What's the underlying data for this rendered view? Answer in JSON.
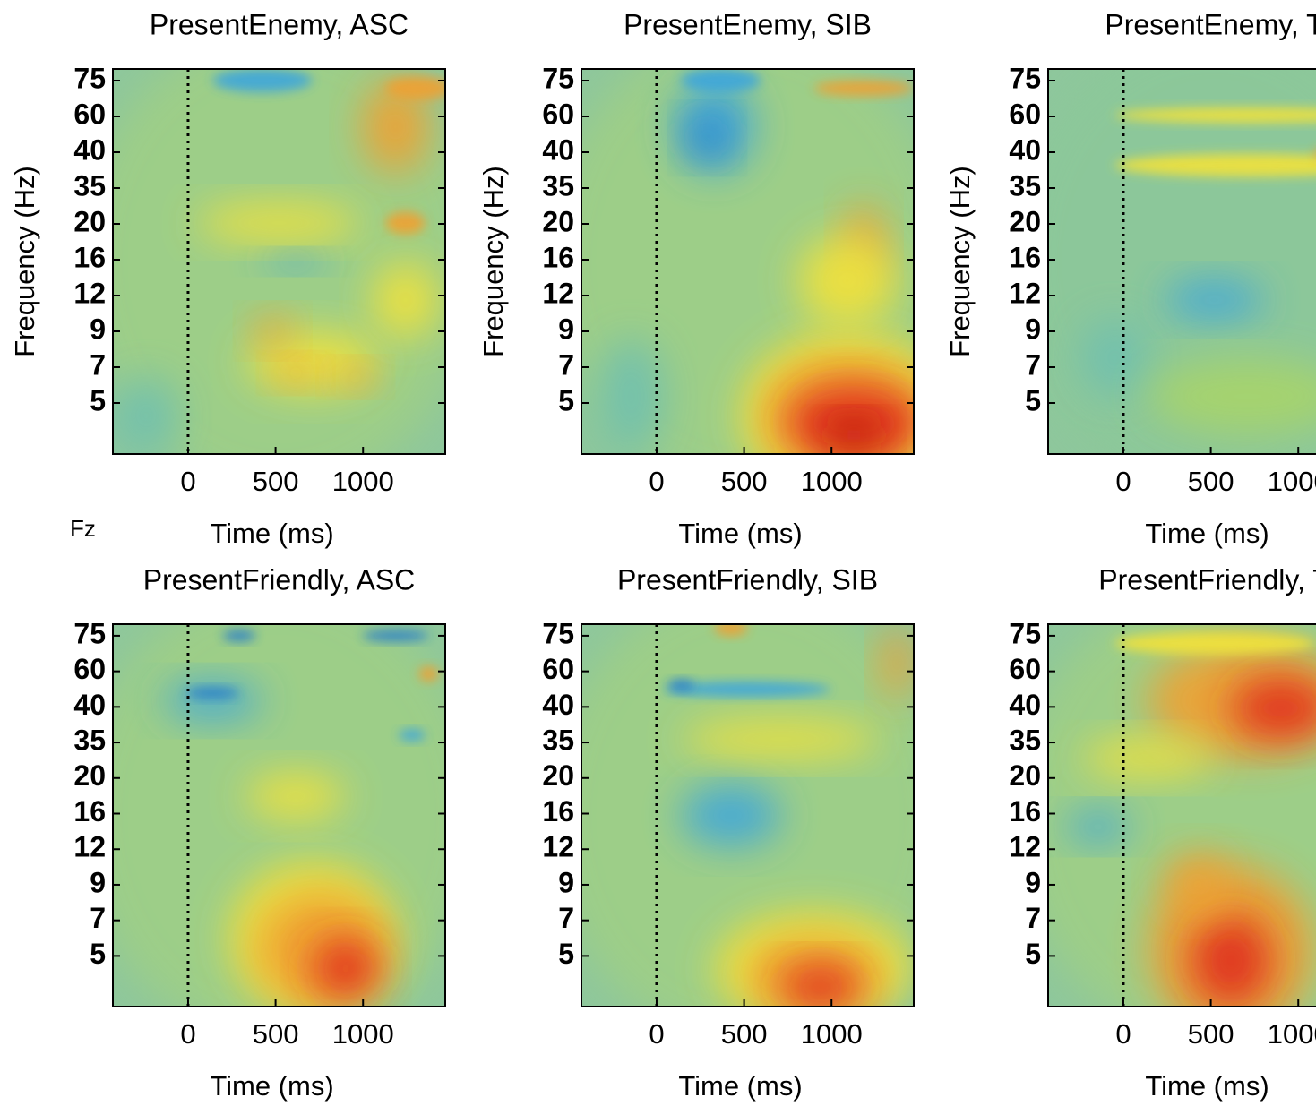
{
  "annotation": "Fz",
  "chart_data": [
    {
      "type": "heatmap",
      "title": "PresentEnemy, ASC",
      "xlabel": "Time (ms)",
      "ylabel": "Frequency (Hz)",
      "xlim": [
        -430,
        1470
      ],
      "xticks": [
        0,
        500,
        1000
      ],
      "vline": 0,
      "frequencies": [
        "5",
        "7",
        "9",
        "12",
        "16",
        "20",
        "35",
        "40",
        "60",
        "75"
      ]
    },
    {
      "type": "heatmap",
      "title": "PresentEnemy, SIB",
      "xlabel": "Time (ms)",
      "ylabel": "Frequency (Hz)",
      "xlim": [
        -430,
        1470
      ],
      "xticks": [
        0,
        500,
        1000
      ],
      "vline": 0,
      "frequencies": [
        "5",
        "7",
        "9",
        "12",
        "16",
        "20",
        "35",
        "40",
        "60",
        "75"
      ]
    },
    {
      "type": "heatmap",
      "title": "PresentEnemy, T",
      "xlabel": "Time (ms)",
      "ylabel": "Frequency (Hz)",
      "xlim": [
        -430,
        1470
      ],
      "xticks": [
        0,
        500,
        1000
      ],
      "vline": 0,
      "frequencies": [
        "5",
        "7",
        "9",
        "12",
        "16",
        "20",
        "35",
        "40",
        "60",
        "75"
      ]
    },
    {
      "type": "heatmap",
      "title": "PresentFriendly, ASC",
      "xlabel": "Time (ms)",
      "xlim": [
        -430,
        1470
      ],
      "xticks": [
        0,
        500,
        1000
      ],
      "vline": 0,
      "frequencies": [
        "5",
        "7",
        "9",
        "12",
        "16",
        "20",
        "35",
        "40",
        "60",
        "75"
      ]
    },
    {
      "type": "heatmap",
      "title": "PresentFriendly, SIB",
      "xlabel": "Time (ms)",
      "xlim": [
        -430,
        1470
      ],
      "xticks": [
        0,
        500,
        1000
      ],
      "vline": 0,
      "frequencies": [
        "5",
        "7",
        "9",
        "12",
        "16",
        "20",
        "35",
        "40",
        "60",
        "75"
      ]
    },
    {
      "type": "heatmap",
      "title": "PresentFriendly, T",
      "xlabel": "Time (ms)",
      "xlim": [
        -430,
        1470
      ],
      "xticks": [
        0,
        500,
        1000
      ],
      "vline": 0,
      "frequencies": [
        "5",
        "7",
        "9",
        "12",
        "16",
        "20",
        "35",
        "40",
        "60",
        "75"
      ]
    }
  ]
}
